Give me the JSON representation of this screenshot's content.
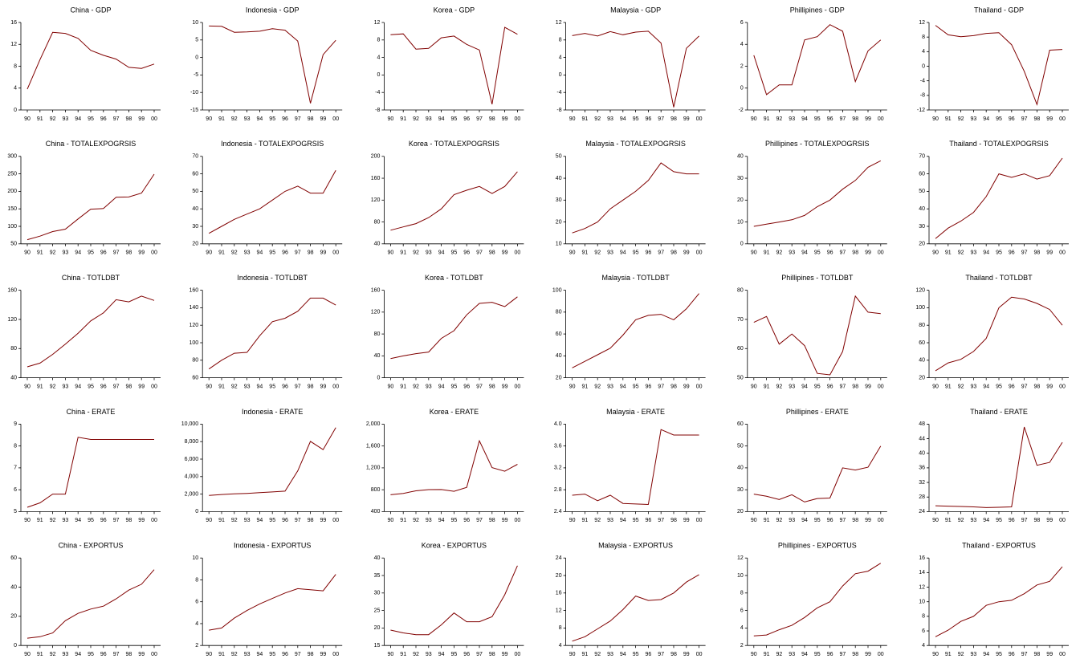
{
  "chart_data": [
    {
      "type": "line",
      "title": "China - GDP",
      "categories": [
        "90",
        "91",
        "92",
        "93",
        "94",
        "95",
        "96",
        "97",
        "98",
        "99",
        "00"
      ],
      "values": [
        3.8,
        9.2,
        14.2,
        14,
        13.1,
        10.9,
        10,
        9.3,
        7.8,
        7.6,
        8.4
      ],
      "color": "#800000",
      "ylim": [
        0,
        16
      ],
      "yticks": [
        0,
        4,
        8,
        12,
        16
      ]
    },
    {
      "type": "line",
      "title": "Indonesia - GDP",
      "categories": [
        "90",
        "91",
        "92",
        "93",
        "94",
        "95",
        "96",
        "97",
        "98",
        "99",
        "00"
      ],
      "values": [
        9,
        8.9,
        7.2,
        7.3,
        7.5,
        8.2,
        7.8,
        4.7,
        -13.1,
        0.8,
        4.9
      ],
      "color": "#800000",
      "ylim": [
        -15,
        10
      ],
      "yticks": [
        -15,
        -10,
        -5,
        0,
        5,
        10
      ]
    },
    {
      "type": "line",
      "title": "Korea - GDP",
      "categories": [
        "90",
        "91",
        "92",
        "93",
        "94",
        "95",
        "96",
        "97",
        "98",
        "99",
        "00"
      ],
      "values": [
        9.2,
        9.4,
        5.9,
        6.1,
        8.5,
        8.9,
        7,
        5.7,
        -6.7,
        10.9,
        9.3
      ],
      "color": "#800000",
      "ylim": [
        -8,
        12
      ],
      "yticks": [
        -8,
        -4,
        0,
        4,
        8,
        12
      ]
    },
    {
      "type": "line",
      "title": "Malaysia - GDP",
      "categories": [
        "90",
        "91",
        "92",
        "93",
        "94",
        "95",
        "96",
        "97",
        "98",
        "99",
        "00"
      ],
      "values": [
        9,
        9.5,
        8.9,
        9.9,
        9.2,
        9.8,
        10,
        7.3,
        -7.4,
        6.1,
        8.9
      ],
      "color": "#800000",
      "ylim": [
        -8,
        12
      ],
      "yticks": [
        -8,
        -4,
        0,
        4,
        8,
        12
      ]
    },
    {
      "type": "line",
      "title": "Phillipines - GDP",
      "categories": [
        "90",
        "91",
        "92",
        "93",
        "94",
        "95",
        "96",
        "97",
        "98",
        "99",
        "00"
      ],
      "values": [
        3,
        -0.6,
        0.3,
        0.3,
        4.4,
        4.7,
        5.8,
        5.2,
        0.6,
        3.4,
        4.4
      ],
      "color": "#800000",
      "ylim": [
        -2,
        6
      ],
      "yticks": [
        -2,
        0,
        2,
        4,
        6
      ]
    },
    {
      "type": "line",
      "title": "Thailand - GDP",
      "categories": [
        "90",
        "91",
        "92",
        "93",
        "94",
        "95",
        "96",
        "97",
        "98",
        "99",
        "00"
      ],
      "values": [
        11.2,
        8.6,
        8.1,
        8.4,
        9,
        9.2,
        5.9,
        -1.4,
        -10.5,
        4.4,
        4.6
      ],
      "color": "#800000",
      "ylim": [
        -12,
        12
      ],
      "yticks": [
        -12,
        -8,
        -4,
        0,
        4,
        8,
        12
      ]
    },
    {
      "type": "line",
      "title": "China - TOTALEXPOGRSIS",
      "categories": [
        "90",
        "91",
        "92",
        "93",
        "94",
        "95",
        "96",
        "97",
        "98",
        "99",
        "00"
      ],
      "values": [
        62,
        72,
        85,
        92,
        121,
        149,
        151,
        183,
        184,
        195,
        249
      ],
      "color": "#800000",
      "ylim": [
        50,
        300
      ],
      "yticks": [
        50,
        100,
        150,
        200,
        250,
        300
      ]
    },
    {
      "type": "line",
      "title": "Indonesia - TOTALEXPOGRSIS",
      "categories": [
        "90",
        "91",
        "92",
        "93",
        "94",
        "95",
        "96",
        "97",
        "98",
        "99",
        "00"
      ],
      "values": [
        26,
        30,
        34,
        37,
        40,
        45,
        50,
        53,
        49,
        49,
        62
      ],
      "color": "#800000",
      "ylim": [
        20,
        70
      ],
      "yticks": [
        20,
        30,
        40,
        50,
        60,
        70
      ]
    },
    {
      "type": "line",
      "title": "Korea - TOTALEXPOGRSIS",
      "categories": [
        "90",
        "91",
        "92",
        "93",
        "94",
        "95",
        "96",
        "97",
        "98",
        "99",
        "00"
      ],
      "values": [
        65,
        71,
        77,
        88,
        104,
        130,
        138,
        145,
        132,
        145,
        172
      ],
      "color": "#800000",
      "ylim": [
        40,
        200
      ],
      "yticks": [
        40,
        80,
        120,
        160,
        200
      ]
    },
    {
      "type": "line",
      "title": "Malaysia - TOTALEXPOGRSIS",
      "categories": [
        "90",
        "91",
        "92",
        "93",
        "94",
        "95",
        "96",
        "97",
        "98",
        "99",
        "00"
      ],
      "values": [
        15,
        17,
        20,
        26,
        30,
        34,
        39,
        47,
        43,
        42,
        42
      ],
      "color": "#800000",
      "ylim": [
        10,
        50
      ],
      "yticks": [
        10,
        20,
        30,
        40,
        50
      ]
    },
    {
      "type": "line",
      "title": "Phillipines - TOTALEXPOGRSIS",
      "categories": [
        "90",
        "91",
        "92",
        "93",
        "94",
        "95",
        "96",
        "97",
        "98",
        "99",
        "00"
      ],
      "values": [
        8,
        9,
        10,
        11,
        13,
        17,
        20,
        25,
        29,
        35,
        38
      ],
      "color": "#800000",
      "ylim": [
        0,
        40
      ],
      "yticks": [
        0,
        10,
        20,
        30,
        40
      ]
    },
    {
      "type": "line",
      "title": "Thailand - TOTALEXPOGRSIS",
      "categories": [
        "90",
        "91",
        "92",
        "93",
        "94",
        "95",
        "96",
        "97",
        "98",
        "99",
        "00"
      ],
      "values": [
        23,
        29,
        33,
        38,
        47,
        60,
        58,
        60,
        57,
        59,
        69
      ],
      "color": "#800000",
      "ylim": [
        20,
        70
      ],
      "yticks": [
        20,
        30,
        40,
        50,
        60,
        70
      ]
    },
    {
      "type": "line",
      "title": "China - TOTLDBT",
      "categories": [
        "90",
        "91",
        "92",
        "93",
        "94",
        "95",
        "96",
        "97",
        "98",
        "99",
        "00"
      ],
      "values": [
        55,
        60,
        72,
        86,
        101,
        118,
        129,
        147,
        144,
        152,
        146
      ],
      "color": "#800000",
      "ylim": [
        40,
        160
      ],
      "yticks": [
        40,
        80,
        120,
        160
      ]
    },
    {
      "type": "line",
      "title": "Indonesia - TOTLDBT",
      "categories": [
        "90",
        "91",
        "92",
        "93",
        "94",
        "95",
        "96",
        "97",
        "98",
        "99",
        "00"
      ],
      "values": [
        70,
        80,
        88,
        89,
        108,
        124,
        128,
        136,
        151,
        151,
        143
      ],
      "color": "#800000",
      "ylim": [
        60,
        160
      ],
      "yticks": [
        60,
        80,
        100,
        120,
        140,
        160
      ]
    },
    {
      "type": "line",
      "title": "Korea - TOTLDBT",
      "categories": [
        "90",
        "91",
        "92",
        "93",
        "94",
        "95",
        "96",
        "97",
        "98",
        "99",
        "00"
      ],
      "values": [
        35,
        40,
        44,
        47,
        72,
        86,
        115,
        136,
        138,
        130,
        148
      ],
      "color": "#800000",
      "ylim": [
        0,
        160
      ],
      "yticks": [
        0,
        40,
        80,
        120,
        160
      ]
    },
    {
      "type": "line",
      "title": "Malaysia - TOTLDBT",
      "categories": [
        "90",
        "91",
        "92",
        "93",
        "94",
        "95",
        "96",
        "97",
        "98",
        "99",
        "00"
      ],
      "values": [
        29,
        35,
        41,
        47,
        59,
        73,
        77,
        78,
        73,
        83,
        97
      ],
      "color": "#800000",
      "ylim": [
        20,
        100
      ],
      "yticks": [
        20,
        40,
        60,
        80,
        100
      ]
    },
    {
      "type": "line",
      "title": "Phillipines - TOTLDBT",
      "categories": [
        "90",
        "91",
        "92",
        "93",
        "94",
        "95",
        "96",
        "97",
        "98",
        "99",
        "00"
      ],
      "values": [
        69,
        71,
        61.5,
        65,
        61,
        51.5,
        51,
        59,
        78,
        72.5,
        72
      ],
      "color": "#800000",
      "ylim": [
        50,
        80
      ],
      "yticks": [
        50,
        60,
        70,
        80
      ]
    },
    {
      "type": "line",
      "title": "Thailand - TOTLDBT",
      "categories": [
        "90",
        "91",
        "92",
        "93",
        "94",
        "95",
        "96",
        "97",
        "98",
        "99",
        "00"
      ],
      "values": [
        28,
        37,
        41,
        50,
        65,
        100,
        112,
        110,
        105,
        98,
        80
      ],
      "color": "#800000",
      "ylim": [
        20,
        120
      ],
      "yticks": [
        20,
        40,
        60,
        80,
        100,
        120
      ]
    },
    {
      "type": "line",
      "title": "China - ERATE",
      "categories": [
        "90",
        "91",
        "92",
        "93",
        "94",
        "95",
        "96",
        "97",
        "98",
        "99",
        "00"
      ],
      "values": [
        5.2,
        5.4,
        5.8,
        5.8,
        8.4,
        8.3,
        8.3,
        8.3,
        8.3,
        8.3,
        8.3
      ],
      "color": "#800000",
      "ylim": [
        5,
        9
      ],
      "yticks": [
        5,
        6,
        7,
        8,
        9
      ]
    },
    {
      "type": "line",
      "title": "Indonesia - ERATE",
      "categories": [
        "90",
        "91",
        "92",
        "93",
        "94",
        "95",
        "96",
        "97",
        "98",
        "99",
        "00"
      ],
      "values": [
        1843,
        1950,
        2030,
        2087,
        2161,
        2249,
        2342,
        4650,
        8025,
        7085,
        9595
      ],
      "color": "#800000",
      "ylim": [
        0,
        10000
      ],
      "yticks": [
        0,
        {
          "value": 2000,
          "label": "2,000"
        },
        {
          "value": 4000,
          "label": "4,000"
        },
        {
          "value": 6000,
          "label": "6,000"
        },
        {
          "value": 8000,
          "label": "8,000"
        },
        {
          "value": 10000,
          "label": "10,000"
        }
      ]
    },
    {
      "type": "line",
      "title": "Korea - ERATE",
      "categories": [
        "90",
        "91",
        "92",
        "93",
        "94",
        "95",
        "96",
        "97",
        "98",
        "99",
        "00"
      ],
      "values": [
        708,
        733,
        780,
        802,
        803,
        771,
        844,
        1695,
        1204,
        1138,
        1265
      ],
      "color": "#800000",
      "ylim": [
        400,
        2000
      ],
      "yticks": [
        400,
        800,
        {
          "value": 1200,
          "label": "1,200"
        },
        {
          "value": 1600,
          "label": "1,600"
        },
        {
          "value": 2000,
          "label": "2,000"
        }
      ]
    },
    {
      "type": "line",
      "title": "Malaysia - ERATE",
      "categories": [
        "90",
        "91",
        "92",
        "93",
        "94",
        "95",
        "96",
        "97",
        "98",
        "99",
        "00"
      ],
      "values": [
        2.7,
        2.72,
        2.6,
        2.7,
        2.55,
        2.54,
        2.53,
        3.9,
        3.8,
        3.8,
        3.8
      ],
      "color": "#800000",
      "ylim": [
        2.4,
        4
      ],
      "yticks": [
        2.4,
        2.8,
        3.2,
        3.6,
        {
          "value": 4,
          "label": "4.0"
        }
      ]
    },
    {
      "type": "line",
      "title": "Phillipines - ERATE",
      "categories": [
        "90",
        "91",
        "92",
        "93",
        "94",
        "95",
        "96",
        "97",
        "98",
        "99",
        "00"
      ],
      "values": [
        28,
        27,
        25.5,
        27.7,
        24.4,
        26,
        26.2,
        40,
        39,
        40.3,
        50
      ],
      "color": "#800000",
      "ylim": [
        20,
        60
      ],
      "yticks": [
        20,
        30,
        40,
        50,
        60
      ]
    },
    {
      "type": "line",
      "title": "Thailand - ERATE",
      "categories": [
        "90",
        "91",
        "92",
        "93",
        "94",
        "95",
        "96",
        "97",
        "98",
        "99",
        "00"
      ],
      "values": [
        25.6,
        25.5,
        25.4,
        25.3,
        25.1,
        25.2,
        25.3,
        47.2,
        36.7,
        37.5,
        43
      ],
      "color": "#800000",
      "ylim": [
        24,
        48
      ],
      "yticks": [
        24,
        28,
        32,
        36,
        40,
        44,
        48
      ]
    },
    {
      "type": "line",
      "title": "China - EXPORTUS",
      "categories": [
        "90",
        "91",
        "92",
        "93",
        "94",
        "95",
        "96",
        "97",
        "98",
        "99",
        "00"
      ],
      "values": [
        5,
        6,
        8.6,
        17,
        22,
        25,
        27,
        32,
        38,
        42,
        52
      ],
      "color": "#800000",
      "ylim": [
        0,
        60
      ],
      "yticks": [
        0,
        20,
        40,
        60
      ]
    },
    {
      "type": "line",
      "title": "Indonesia - EXPORTUS",
      "categories": [
        "90",
        "91",
        "92",
        "93",
        "94",
        "95",
        "96",
        "97",
        "98",
        "99",
        "00"
      ],
      "values": [
        3.4,
        3.6,
        4.5,
        5.2,
        5.8,
        6.3,
        6.8,
        7.2,
        7.1,
        7,
        8.5
      ],
      "color": "#800000",
      "ylim": [
        2,
        10
      ],
      "yticks": [
        2,
        4,
        6,
        8,
        10
      ]
    },
    {
      "type": "line",
      "title": "Korea - EXPORTUS",
      "categories": [
        "90",
        "91",
        "92",
        "93",
        "94",
        "95",
        "96",
        "97",
        "98",
        "99",
        "00"
      ],
      "values": [
        19.4,
        18.6,
        18.1,
        18.1,
        20.9,
        24.3,
        21.8,
        21.8,
        23.2,
        29.5,
        37.8
      ],
      "color": "#800000",
      "ylim": [
        15,
        40
      ],
      "yticks": [
        15,
        20,
        25,
        30,
        35,
        40
      ]
    },
    {
      "type": "line",
      "title": "Malaysia - EXPORTUS",
      "categories": [
        "90",
        "91",
        "92",
        "93",
        "94",
        "95",
        "96",
        "97",
        "98",
        "99",
        "00"
      ],
      "values": [
        5,
        6,
        7.8,
        9.6,
        12.2,
        15.3,
        14.3,
        14.5,
        16,
        18.5,
        20.2
      ],
      "color": "#800000",
      "ylim": [
        4,
        24
      ],
      "yticks": [
        4,
        8,
        12,
        16,
        20,
        24
      ]
    },
    {
      "type": "line",
      "title": "Phillipines - EXPORTUS",
      "categories": [
        "90",
        "91",
        "92",
        "93",
        "94",
        "95",
        "96",
        "97",
        "98",
        "99",
        "00"
      ],
      "values": [
        3.1,
        3.2,
        3.8,
        4.3,
        5.2,
        6.3,
        7,
        8.8,
        10.2,
        10.5,
        11.4
      ],
      "color": "#800000",
      "ylim": [
        2,
        12
      ],
      "yticks": [
        2,
        4,
        6,
        8,
        10,
        12
      ]
    },
    {
      "type": "line",
      "title": "Thailand - EXPORTUS",
      "categories": [
        "90",
        "91",
        "92",
        "93",
        "94",
        "95",
        "96",
        "97",
        "98",
        "99",
        "00"
      ],
      "values": [
        5.2,
        6.1,
        7.3,
        8,
        9.5,
        10,
        10.2,
        11.1,
        12.3,
        12.8,
        14.8
      ],
      "color": "#800000",
      "ylim": [
        4,
        16
      ],
      "yticks": [
        4,
        6,
        8,
        10,
        12,
        14,
        16
      ]
    }
  ]
}
